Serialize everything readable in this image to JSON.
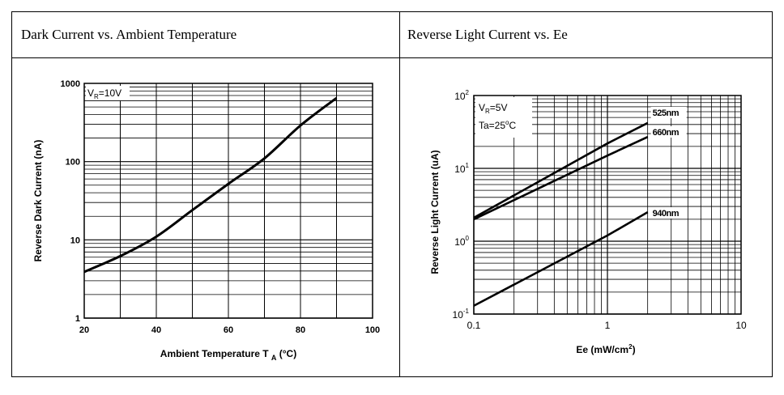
{
  "headers": {
    "left": "Dark Current vs. Ambient Temperature",
    "right": "Reverse Light Current vs. Ee"
  },
  "chart_data": [
    {
      "type": "line",
      "x_scale": "linear",
      "y_scale": "log",
      "xlabel": "Ambient Temperature T",
      "xlabel_sub": "A",
      "xlabel_unit": "(°C)",
      "ylabel": "Reverse Dark Current (nA)",
      "xlim": [
        20,
        100
      ],
      "ylim": [
        1,
        1000
      ],
      "x_ticks": [
        20,
        40,
        60,
        80,
        100
      ],
      "y_ticks": [
        {
          "v": 1,
          "t": "1"
        },
        {
          "v": 10,
          "t": "10"
        },
        {
          "v": 100,
          "t": "100"
        },
        {
          "v": 1000,
          "t": "1000"
        }
      ],
      "grid": true,
      "annotation": {
        "main": "V",
        "sub": "R",
        "rest": "=10V"
      },
      "series": [
        {
          "points": [
            [
              20,
              3.9
            ],
            [
              30,
              6.2
            ],
            [
              40,
              11
            ],
            [
              50,
              24
            ],
            [
              60,
              52
            ],
            [
              70,
              110
            ],
            [
              80,
              290
            ],
            [
              90,
              650
            ]
          ]
        }
      ]
    },
    {
      "type": "line",
      "x_scale": "log",
      "y_scale": "log",
      "xlabel": "Ee (mW/cm",
      "xlabel_sup": "2",
      "xlabel_end": ")",
      "ylabel": "Reverse Light Current (uA)",
      "xlim": [
        0.1,
        10
      ],
      "ylim": [
        0.1,
        100
      ],
      "x_ticks": [
        {
          "v": 0.1,
          "t": "0.1"
        },
        {
          "v": 1,
          "t": "1"
        },
        {
          "v": 10,
          "t": "10"
        }
      ],
      "y_ticks": [
        {
          "v": 0.1,
          "base": "10",
          "exp": "-1"
        },
        {
          "v": 1,
          "base": "10",
          "exp": "0"
        },
        {
          "v": 10,
          "base": "10",
          "exp": "1"
        },
        {
          "v": 100,
          "base": "10",
          "exp": "2"
        }
      ],
      "grid": true,
      "annotation": {
        "l1_main": "V",
        "l1_sub": "R",
        "l1_rest": "=5V",
        "l2_main": "Ta=25",
        "l2_sup": "o",
        "l2_rest": "C"
      },
      "series": [
        {
          "name": "525nm",
          "points": [
            [
              0.1,
              2.1
            ],
            [
              1,
              22
            ],
            [
              2,
              42
            ]
          ]
        },
        {
          "name": "660nm",
          "points": [
            [
              0.1,
              2.0
            ],
            [
              1,
              15
            ],
            [
              2,
              27
            ]
          ]
        },
        {
          "name": "940nm",
          "points": [
            [
              0.1,
              0.13
            ],
            [
              1,
              1.2
            ],
            [
              2,
              2.5
            ]
          ]
        }
      ]
    }
  ]
}
